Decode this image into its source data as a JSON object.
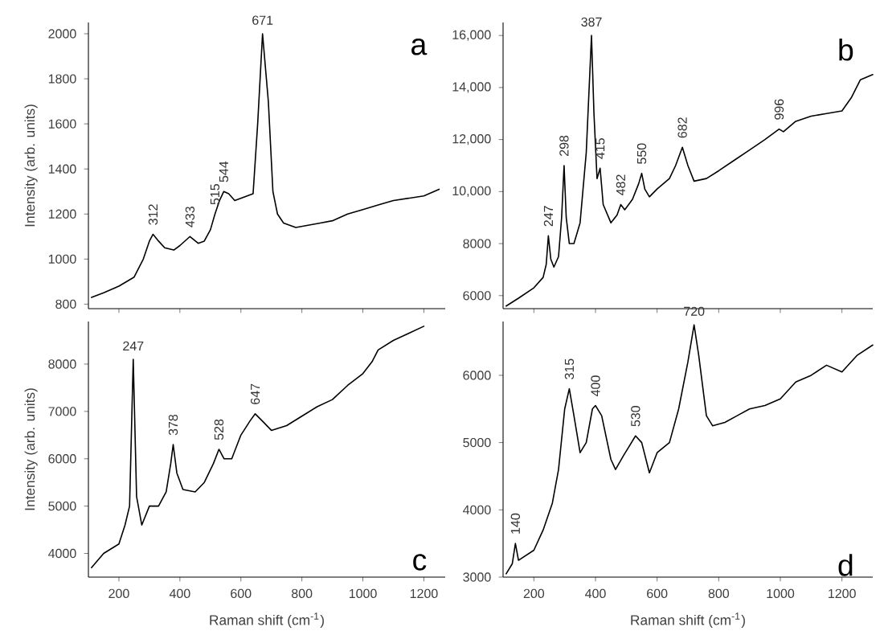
{
  "chart_data": [
    {
      "type": "line",
      "ylabel": "Intensity (arb. units)",
      "xlim": [
        100,
        1270
      ],
      "ylim": [
        780,
        2050
      ],
      "xticks": [
        200,
        400,
        600,
        800,
        1000,
        1200
      ],
      "yticks": [
        800,
        1000,
        1200,
        1400,
        1600,
        1800,
        2000
      ],
      "tick_labels": "y",
      "x": [
        110,
        150,
        200,
        250,
        280,
        300,
        312,
        330,
        350,
        380,
        400,
        433,
        460,
        480,
        500,
        515,
        530,
        544,
        560,
        580,
        600,
        620,
        640,
        655,
        671,
        690,
        705,
        720,
        740,
        780,
        820,
        860,
        900,
        950,
        1000,
        1050,
        1100,
        1150,
        1200,
        1250
      ],
      "series": [
        {
          "color": "#000000",
          "values": [
            830,
            850,
            880,
            920,
            1000,
            1080,
            1110,
            1080,
            1050,
            1040,
            1060,
            1100,
            1070,
            1080,
            1130,
            1200,
            1260,
            1300,
            1290,
            1260,
            1270,
            1280,
            1290,
            1600,
            2000,
            1700,
            1300,
            1200,
            1160,
            1140,
            1150,
            1160,
            1170,
            1200,
            1220,
            1240,
            1260,
            1270,
            1280,
            1310
          ]
        }
      ],
      "annotations": [
        "a",
        {
          "text": "312",
          "x": 312,
          "y": 1110
        },
        {
          "text": "433",
          "x": 433,
          "y": 1100
        },
        {
          "text": "515",
          "x": 515,
          "y": 1200
        },
        {
          "text": "544",
          "x": 544,
          "y": 1300
        },
        {
          "text": "671",
          "x": 671,
          "y": 2000
        }
      ]
    },
    {
      "type": "line",
      "xlim": [
        100,
        1300
      ],
      "ylim": [
        5500,
        16500
      ],
      "xticks": [
        200,
        400,
        600,
        800,
        1000,
        1200
      ],
      "yticks": [
        6000,
        8000,
        {
          "value": 10000,
          "label": "10,000"
        },
        {
          "value": 12000,
          "label": "12,000"
        },
        {
          "value": 14000,
          "label": "14,000"
        },
        {
          "value": 16000,
          "label": "16,000"
        }
      ],
      "tick_labels": "y",
      "x": [
        110,
        150,
        200,
        230,
        240,
        247,
        255,
        265,
        280,
        290,
        298,
        305,
        315,
        330,
        350,
        370,
        387,
        395,
        405,
        415,
        425,
        450,
        470,
        482,
        495,
        520,
        540,
        550,
        560,
        575,
        600,
        640,
        660,
        682,
        700,
        720,
        760,
        800,
        850,
        900,
        950,
        996,
        1010,
        1050,
        1100,
        1150,
        1200,
        1230,
        1260,
        1300
      ],
      "series": [
        {
          "color": "#000000",
          "values": [
            5600,
            5900,
            6300,
            6700,
            7200,
            8300,
            7400,
            7100,
            7500,
            9000,
            11000,
            9000,
            8000,
            8000,
            8800,
            11500,
            16000,
            13000,
            10500,
            10900,
            9500,
            8800,
            9100,
            9500,
            9300,
            9700,
            10300,
            10700,
            10100,
            9800,
            10100,
            10500,
            11000,
            11700,
            11000,
            10400,
            10500,
            10800,
            11200,
            11600,
            12000,
            12400,
            12300,
            12700,
            12900,
            13000,
            13100,
            13600,
            14300,
            14500
          ]
        }
      ],
      "annotations": [
        "b",
        {
          "text": "247",
          "x": 247,
          "y": 8300
        },
        {
          "text": "298",
          "x": 298,
          "y": 11000
        },
        {
          "text": "387",
          "x": 387,
          "y": 16000
        },
        {
          "text": "415",
          "x": 415,
          "y": 10900
        },
        {
          "text": "482",
          "x": 482,
          "y": 9500
        },
        {
          "text": "550",
          "x": 550,
          "y": 10700
        },
        {
          "text": "682",
          "x": 682,
          "y": 11700
        },
        {
          "text": "996",
          "x": 996,
          "y": 12400
        }
      ]
    },
    {
      "type": "line",
      "xlabel": "Raman shift (cm$^{-1}$)",
      "ylabel": "Intensity (arb. units)",
      "xlim": [
        100,
        1270
      ],
      "ylim": [
        3500,
        8900
      ],
      "xticks": [
        200,
        400,
        600,
        800,
        1000,
        1200
      ],
      "yticks": [
        4000,
        5000,
        6000,
        7000,
        8000
      ],
      "x": [
        110,
        150,
        200,
        220,
        235,
        247,
        258,
        275,
        300,
        330,
        355,
        370,
        378,
        390,
        410,
        450,
        480,
        510,
        528,
        545,
        570,
        600,
        630,
        647,
        670,
        700,
        750,
        800,
        850,
        900,
        950,
        1000,
        1030,
        1050,
        1100,
        1150,
        1200
      ],
      "series": [
        {
          "color": "#000000",
          "values": [
            3700,
            4000,
            4200,
            4600,
            5000,
            8100,
            5200,
            4600,
            5000,
            5000,
            5300,
            5900,
            6300,
            5700,
            5350,
            5300,
            5500,
            5900,
            6200,
            6000,
            6000,
            6500,
            6800,
            6950,
            6800,
            6600,
            6700,
            6900,
            7100,
            7250,
            7550,
            7800,
            8050,
            8300,
            8500,
            8650,
            8800
          ]
        }
      ],
      "annotations": [
        "c",
        {
          "text": "247",
          "x": 247,
          "y": 8100
        },
        {
          "text": "378",
          "x": 378,
          "y": 6300
        },
        {
          "text": "528",
          "x": 528,
          "y": 6200
        },
        {
          "text": "647",
          "x": 647,
          "y": 6950
        }
      ]
    },
    {
      "type": "line",
      "xlabel": "Raman shift (cm$^{-1}$)",
      "xlim": [
        100,
        1300
      ],
      "ylim": [
        3000,
        6800
      ],
      "xticks": [
        200,
        400,
        600,
        800,
        1000,
        1200
      ],
      "yticks": [
        3000,
        4000,
        5000,
        6000
      ],
      "x": [
        110,
        130,
        140,
        150,
        200,
        230,
        260,
        280,
        300,
        315,
        330,
        350,
        370,
        390,
        400,
        420,
        450,
        465,
        490,
        510,
        530,
        550,
        575,
        600,
        640,
        670,
        700,
        720,
        735,
        760,
        780,
        820,
        860,
        900,
        950,
        1000,
        1050,
        1100,
        1150,
        1200,
        1250,
        1300
      ],
      "series": [
        {
          "color": "#000000",
          "values": [
            3050,
            3200,
            3500,
            3250,
            3400,
            3700,
            4100,
            4600,
            5500,
            5800,
            5400,
            4850,
            5000,
            5500,
            5550,
            5400,
            4750,
            4600,
            4800,
            4950,
            5100,
            5000,
            4550,
            4850,
            5000,
            5500,
            6200,
            6750,
            6300,
            5400,
            5250,
            5300,
            5400,
            5500,
            5550,
            5650,
            5900,
            6000,
            6150,
            6050,
            6300,
            6450
          ]
        }
      ],
      "annotations": [
        "d",
        {
          "text": "140",
          "x": 140,
          "y": 3500
        },
        {
          "text": "315",
          "x": 315,
          "y": 5800
        },
        {
          "text": "400",
          "x": 400,
          "y": 5550
        },
        {
          "text": "530",
          "x": 530,
          "y": 5100
        },
        {
          "text": "720",
          "x": 720,
          "y": 6750
        }
      ]
    }
  ]
}
